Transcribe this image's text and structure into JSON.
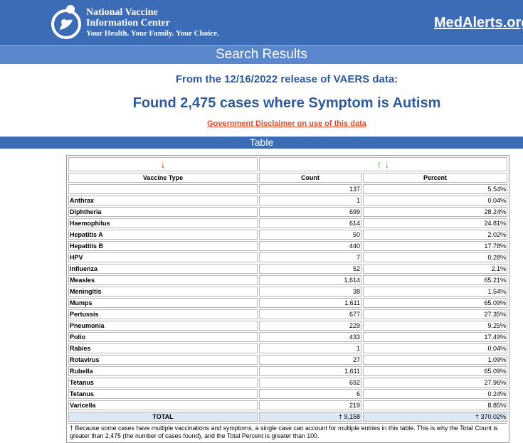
{
  "header": {
    "org_name_line1": "National Vaccine",
    "org_name_line2": "Information Center",
    "tagline": "Your Health. Your Family. Your Choice.",
    "site_link": "MedAlerts.org"
  },
  "title_bar": "Search Results",
  "release_text": "From the 12/16/2022 release of VAERS data:",
  "found_text": "Found 2,475 cases where Symptom is Autism",
  "disclaimer_link": "Government Disclaimer on use of this data",
  "section_bar": "Table",
  "table": {
    "sort_arrows": {
      "vaccine_type": "↓",
      "count": "↑ ↓"
    },
    "headers": {
      "vaccine_type": "Vaccine Type",
      "count": "Count",
      "percent": "Percent"
    },
    "rows": [
      {
        "vaccine": "",
        "count": "137",
        "percent": "5.54%"
      },
      {
        "vaccine": "Anthrax",
        "count": "1",
        "percent": "0.04%"
      },
      {
        "vaccine": "Diphtheria",
        "count": "699",
        "percent": "28.24%"
      },
      {
        "vaccine": "Haemophilus",
        "count": "614",
        "percent": "24.81%"
      },
      {
        "vaccine": "Hepatitis A",
        "count": "50",
        "percent": "2.02%"
      },
      {
        "vaccine": "Hepatitis B",
        "count": "440",
        "percent": "17.78%"
      },
      {
        "vaccine": "HPV",
        "count": "7",
        "percent": "0.28%"
      },
      {
        "vaccine": "Influenza",
        "count": "52",
        "percent": "2.1%"
      },
      {
        "vaccine": "Measles",
        "count": "1,614",
        "percent": "65.21%"
      },
      {
        "vaccine": "Meningitis",
        "count": "38",
        "percent": "1.54%"
      },
      {
        "vaccine": "Mumps",
        "count": "1,611",
        "percent": "65.09%"
      },
      {
        "vaccine": "Pertussis",
        "count": "677",
        "percent": "27.35%"
      },
      {
        "vaccine": "Pneumonia",
        "count": "229",
        "percent": "9.25%"
      },
      {
        "vaccine": "Polio",
        "count": "433",
        "percent": "17.49%"
      },
      {
        "vaccine": "Rabies",
        "count": "1",
        "percent": "0.04%"
      },
      {
        "vaccine": "Rotavirus",
        "count": "27",
        "percent": "1.09%"
      },
      {
        "vaccine": "Rubella",
        "count": "1,611",
        "percent": "65.09%"
      },
      {
        "vaccine": "Tetanus",
        "count": "692",
        "percent": "27.96%"
      },
      {
        "vaccine": "Tetanus",
        "count": "6",
        "percent": "0.24%"
      },
      {
        "vaccine": "Varicella",
        "count": "219",
        "percent": "8.85%"
      }
    ],
    "total": {
      "label": "TOTAL",
      "count": "† 9,158",
      "percent": "† 370.02%"
    },
    "footnote": "† Because some cases have multiple vaccinations and symptoms, a single case can account for multiple entries in this table. This is why the Total Count is greater than 2,475 (the number of cases found), and the Total Percent is greater than 100."
  },
  "colors": {
    "header_blue": "#3d6cb7",
    "title_bar_blue": "#5a86cc",
    "heading_text": "#2e5a9c",
    "disclaimer_red": "#e04a2a",
    "arrow_red": "#e0301e",
    "arrow_green": "#1fbf2a"
  },
  "icons": {
    "logo": "nvic-family-logo-icon"
  }
}
